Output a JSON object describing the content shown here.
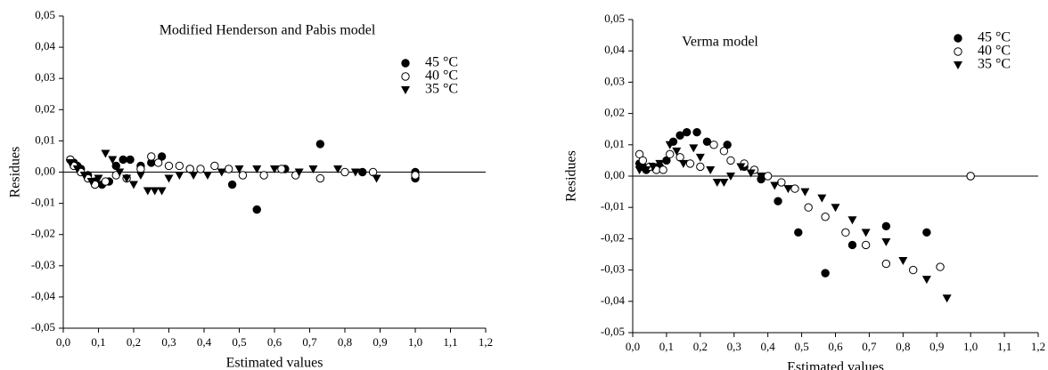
{
  "chart_data": [
    {
      "type": "scatter",
      "title": "Modified Henderson and Pabis model",
      "xlabel": "Estimated values",
      "ylabel": "Residues",
      "xlim": [
        0,
        1.2
      ],
      "ylim": [
        -0.05,
        0.05
      ],
      "legend": "upper right",
      "xticks": [
        {
          "value": 0,
          "label": "0,0"
        },
        {
          "value": 0.1,
          "label": "0,1"
        },
        {
          "value": 0.2,
          "label": "0,2"
        },
        {
          "value": 0.3,
          "label": "0,3"
        },
        {
          "value": 0.4,
          "label": "0,4"
        },
        {
          "value": 0.5,
          "label": "0,5"
        },
        {
          "value": 0.6,
          "label": "0,6"
        },
        {
          "value": 0.7,
          "label": "0,7"
        },
        {
          "value": 0.8,
          "label": "0,8"
        },
        {
          "value": 0.9,
          "label": "0,9"
        },
        {
          "value": 1.0,
          "label": "1,0"
        },
        {
          "value": 1.1,
          "label": "1,1"
        },
        {
          "value": 1.2,
          "label": "1,2"
        }
      ],
      "yticks": [
        {
          "value": -0.05,
          "label": "-0,05"
        },
        {
          "value": -0.04,
          "label": "-0,04"
        },
        {
          "value": -0.03,
          "label": "-0,03"
        },
        {
          "value": -0.02,
          "label": "-0,02"
        },
        {
          "value": -0.01,
          "label": "-0,01"
        },
        {
          "value": 0,
          "label": "0,00"
        },
        {
          "value": 0.01,
          "label": "0,01"
        },
        {
          "value": 0.02,
          "label": "0,02"
        },
        {
          "value": 0.03,
          "label": "0,03"
        },
        {
          "value": 0.04,
          "label": "0,04"
        },
        {
          "value": 0.05,
          "label": "0,05"
        }
      ],
      "series": [
        {
          "name": "45 °C",
          "color": "#000000",
          "marker": "circle",
          "x": [
            0.02,
            0.03,
            0.04,
            0.05,
            0.07,
            0.09,
            0.11,
            0.13,
            0.15,
            0.17,
            0.19,
            0.22,
            0.25,
            0.28,
            0.36,
            0.48,
            0.55,
            0.63,
            0.73,
            0.85,
            1.0,
            1.0
          ],
          "y": [
            0.004,
            0.003,
            0.002,
            0.001,
            -0.001,
            -0.003,
            -0.004,
            -0.003,
            0.002,
            0.004,
            0.004,
            0.002,
            0.003,
            0.005,
            0.001,
            -0.004,
            -0.012,
            0.001,
            0.009,
            0.0,
            0.0,
            -0.002
          ]
        },
        {
          "name": "40 °C",
          "color": "#000000",
          "marker": "circle-open",
          "x": [
            0.02,
            0.03,
            0.05,
            0.07,
            0.09,
            0.12,
            0.15,
            0.18,
            0.22,
            0.25,
            0.27,
            0.3,
            0.33,
            0.36,
            0.39,
            0.43,
            0.47,
            0.51,
            0.57,
            0.62,
            0.66,
            0.73,
            0.8,
            0.88,
            1.0
          ],
          "y": [
            0.004,
            0.002,
            0.0,
            -0.002,
            -0.004,
            -0.003,
            -0.001,
            -0.002,
            0.001,
            0.005,
            0.003,
            0.002,
            0.002,
            0.001,
            0.001,
            0.002,
            0.001,
            -0.001,
            -0.001,
            0.001,
            -0.001,
            -0.002,
            0.0,
            0.0,
            -0.001
          ]
        },
        {
          "name": "35 °C",
          "color": "#000000",
          "marker": "triangle-down",
          "x": [
            0.02,
            0.04,
            0.06,
            0.08,
            0.1,
            0.12,
            0.14,
            0.16,
            0.18,
            0.2,
            0.22,
            0.24,
            0.26,
            0.28,
            0.3,
            0.33,
            0.37,
            0.41,
            0.45,
            0.5,
            0.55,
            0.6,
            0.67,
            0.71,
            0.78,
            0.83,
            0.89
          ],
          "y": [
            0.003,
            0.001,
            -0.001,
            -0.003,
            -0.002,
            0.006,
            0.004,
            0.0,
            -0.002,
            -0.004,
            -0.001,
            -0.006,
            -0.006,
            -0.006,
            -0.002,
            -0.001,
            -0.001,
            -0.001,
            0.0,
            0.001,
            0.001,
            0.001,
            0.0,
            0.001,
            0.001,
            0.0,
            -0.002
          ]
        }
      ]
    },
    {
      "type": "scatter",
      "title": "Verma model",
      "xlabel": "Estimated values",
      "ylabel": "Residues",
      "xlim": [
        0,
        1.2
      ],
      "ylim": [
        -0.05,
        0.05
      ],
      "legend": "upper right",
      "xticks": [
        {
          "value": 0,
          "label": "0,0"
        },
        {
          "value": 0.1,
          "label": "0,1"
        },
        {
          "value": 0.2,
          "label": "0,2"
        },
        {
          "value": 0.3,
          "label": "0,3"
        },
        {
          "value": 0.4,
          "label": "0,4"
        },
        {
          "value": 0.5,
          "label": "0,5"
        },
        {
          "value": 0.6,
          "label": "0,6"
        },
        {
          "value": 0.7,
          "label": "0,7"
        },
        {
          "value": 0.8,
          "label": "0,8"
        },
        {
          "value": 0.9,
          "label": "0,9"
        },
        {
          "value": 1.0,
          "label": "1,0"
        },
        {
          "value": 1.1,
          "label": "1,1"
        },
        {
          "value": 1.2,
          "label": "1,2"
        }
      ],
      "yticks": [
        {
          "value": -0.05,
          "label": "-0,05"
        },
        {
          "value": -0.04,
          "label": "-0,04"
        },
        {
          "value": -0.03,
          "label": "-0,03"
        },
        {
          "value": -0.02,
          "label": "-0,02"
        },
        {
          "value": -0.01,
          "label": "-0,01"
        },
        {
          "value": 0,
          "label": "0,00"
        },
        {
          "value": 0.01,
          "label": "0,01"
        },
        {
          "value": 0.02,
          "label": "0,02"
        },
        {
          "value": 0.03,
          "label": "0,03"
        },
        {
          "value": 0.04,
          "label": "0,04"
        },
        {
          "value": 0.05,
          "label": "0,05"
        }
      ],
      "series": [
        {
          "name": "45 °C",
          "color": "#000000",
          "marker": "circle",
          "x": [
            0.02,
            0.03,
            0.04,
            0.06,
            0.08,
            0.1,
            0.12,
            0.14,
            0.16,
            0.19,
            0.22,
            0.28,
            0.33,
            0.38,
            0.43,
            0.49,
            0.57,
            0.65,
            0.75,
            0.87,
            1.0
          ],
          "y": [
            0.004,
            0.003,
            0.002,
            0.003,
            0.003,
            0.005,
            0.011,
            0.013,
            0.014,
            0.014,
            0.011,
            0.01,
            0.003,
            -0.001,
            -0.008,
            -0.018,
            -0.031,
            -0.022,
            -0.016,
            -0.018,
            0.0
          ]
        },
        {
          "name": "40 °C",
          "color": "#000000",
          "marker": "circle-open",
          "x": [
            0.02,
            0.03,
            0.05,
            0.07,
            0.09,
            0.11,
            0.14,
            0.17,
            0.2,
            0.24,
            0.27,
            0.29,
            0.33,
            0.36,
            0.4,
            0.44,
            0.48,
            0.52,
            0.57,
            0.63,
            0.69,
            0.75,
            0.83,
            0.91,
            1.0
          ],
          "y": [
            0.007,
            0.005,
            0.003,
            0.002,
            0.002,
            0.007,
            0.006,
            0.004,
            0.003,
            0.01,
            0.008,
            0.005,
            0.004,
            0.002,
            0.0,
            -0.002,
            -0.004,
            -0.01,
            -0.013,
            -0.018,
            -0.022,
            -0.028,
            -0.03,
            -0.029,
            0.0
          ]
        },
        {
          "name": "35 °C",
          "color": "#000000",
          "marker": "triangle-down",
          "x": [
            0.02,
            0.04,
            0.06,
            0.08,
            0.11,
            0.13,
            0.15,
            0.18,
            0.2,
            0.23,
            0.25,
            0.27,
            0.29,
            0.32,
            0.35,
            0.38,
            0.42,
            0.46,
            0.51,
            0.56,
            0.6,
            0.65,
            0.69,
            0.75,
            0.8,
            0.87,
            0.93
          ],
          "y": [
            0.002,
            0.002,
            0.003,
            0.004,
            0.01,
            0.008,
            0.004,
            0.009,
            0.006,
            0.002,
            -0.002,
            -0.002,
            0.0,
            0.003,
            0.001,
            0.0,
            -0.003,
            -0.004,
            -0.005,
            -0.007,
            -0.01,
            -0.014,
            -0.018,
            -0.021,
            -0.027,
            -0.033,
            -0.039
          ]
        }
      ]
    }
  ]
}
